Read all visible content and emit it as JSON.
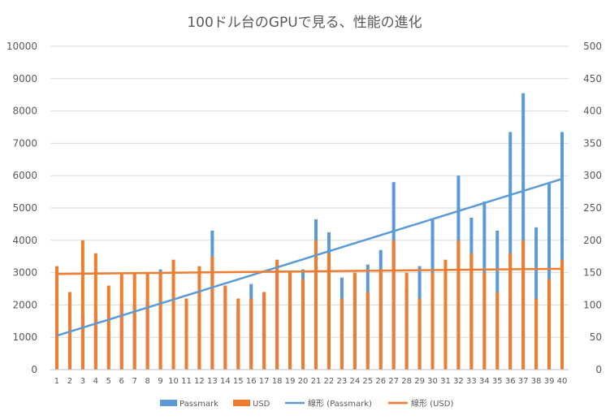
{
  "chart_data": {
    "type": "bar",
    "title": "100ドル台のGPUで見る、性能の進化",
    "categories": [
      "1",
      "2",
      "3",
      "4",
      "5",
      "6",
      "7",
      "8",
      "9",
      "10",
      "11",
      "12",
      "13",
      "14",
      "15",
      "16",
      "17",
      "18",
      "19",
      "20",
      "21",
      "22",
      "23",
      "24",
      "25",
      "26",
      "27",
      "28",
      "29",
      "30",
      "31",
      "32",
      "33",
      "34",
      "35",
      "36",
      "37",
      "38",
      "39",
      "40"
    ],
    "y_left": {
      "min": 0,
      "max": 10000,
      "step": 1000,
      "ticks": [
        "0",
        "1000",
        "2000",
        "3000",
        "4000",
        "5000",
        "6000",
        "7000",
        "8000",
        "9000",
        "10000"
      ]
    },
    "y_right": {
      "min": 0,
      "max": 500,
      "step": 50,
      "ticks": [
        "0",
        "50",
        "100",
        "150",
        "200",
        "250",
        "300",
        "350",
        "400",
        "450",
        "500"
      ]
    },
    "series": [
      {
        "name": "Passmark",
        "axis": "left",
        "color": "#5B9BD5",
        "values": [
          1500,
          1200,
          1700,
          1800,
          1200,
          2050,
          2000,
          2100,
          3100,
          2000,
          2100,
          2400,
          4300,
          2550,
          1950,
          2650,
          2400,
          3000,
          3000,
          3100,
          4650,
          4250,
          2850,
          2900,
          3250,
          3700,
          5800,
          2500,
          3200,
          4650,
          3000,
          6000,
          4700,
          5200,
          4300,
          7350,
          8550,
          4400,
          5750,
          7350
        ]
      },
      {
        "name": "USD",
        "axis": "right",
        "color": "#ED7D31",
        "values": [
          160,
          120,
          200,
          180,
          130,
          150,
          150,
          150,
          150,
          170,
          110,
          160,
          175,
          130,
          110,
          110,
          120,
          170,
          150,
          140,
          200,
          180,
          110,
          150,
          120,
          155,
          200,
          150,
          110,
          150,
          170,
          200,
          180,
          150,
          120,
          180,
          200,
          110,
          140,
          170
        ]
      }
    ],
    "trendlines": [
      {
        "name": "線形 (Passmark)",
        "series": "Passmark",
        "axis": "left",
        "color": "#5B9BD5",
        "start": 1050,
        "end": 5900
      },
      {
        "name": "線形 (USD)",
        "series": "USD",
        "axis": "right",
        "color": "#ED7D31",
        "start": 148,
        "end": 156
      }
    ],
    "legend": [
      "Passmark",
      "USD",
      "線形 (Passmark)",
      "線形 (USD)"
    ],
    "legend_position": "bottom",
    "grid": true
  }
}
